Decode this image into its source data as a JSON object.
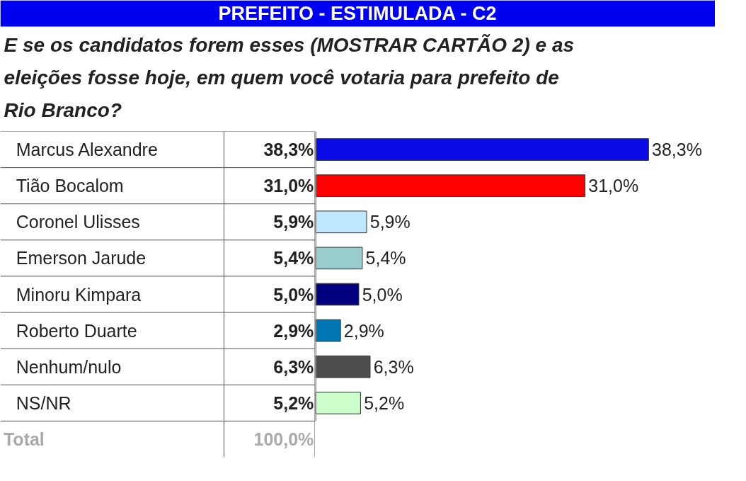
{
  "chart_data": {
    "type": "bar",
    "orientation": "horizontal",
    "title": "PREFEITO - ESTIMULADA - C2",
    "subtitle": "E se os candidatos forem esses (MOSTRAR CARTÃO 2) e as eleições fosse hoje, em quem você votaria para prefeito de Rio Branco?",
    "categories": [
      "Marcus Alexandre",
      "Tião Bocalom",
      "Coronel Ulisses",
      "Emerson Jarude",
      "Minoru Kimpara",
      "Roberto Duarte",
      "Nenhum/nulo",
      "NS/NR"
    ],
    "values": [
      38.3,
      31.0,
      5.9,
      5.4,
      5.0,
      2.9,
      6.3,
      5.2
    ],
    "colors": [
      "#0a0ae6",
      "#ff0000",
      "#bfe6ff",
      "#99cccc",
      "#000080",
      "#0077b3",
      "#4d4d4d",
      "#ccffcc"
    ],
    "value_labels": [
      "38,3%",
      "31,0%",
      "5,9%",
      "5,4%",
      "5,0%",
      "2,9%",
      "6,3%",
      "5,2%"
    ],
    "annotations": [
      "Total",
      "100,0%"
    ],
    "tick_labels": false,
    "legend": false,
    "grid": false
  }
}
